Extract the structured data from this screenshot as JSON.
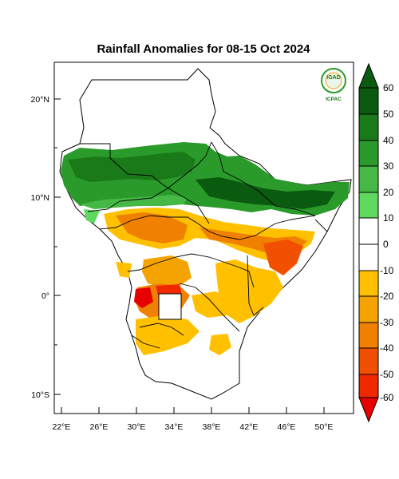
{
  "title": "Rainfall Anomalies for 08-15 Oct 2024",
  "map": {
    "lon_ticks": [
      "22°E",
      "26°E",
      "30°E",
      "34°E",
      "38°E",
      "42°E",
      "46°E",
      "50°E"
    ],
    "lat_ticks": [
      "20°N",
      "10°N",
      "0°",
      "10°S"
    ]
  },
  "colorbar": {
    "labels": [
      "60",
      "50",
      "40",
      "30",
      "20",
      "10",
      "0",
      "-10",
      "-20",
      "-30",
      "-40",
      "-50",
      "-60"
    ],
    "colors_top_to_bottom": [
      "#0a5a10",
      "#1a7a1a",
      "#2a9a2a",
      "#45b845",
      "#5fd85f",
      "#ffffff",
      "#ffffff",
      "#ffc000",
      "#f4a300",
      "#f08000",
      "#f05000",
      "#f02800",
      "#e60000"
    ]
  },
  "logo": {
    "org": "IGAD",
    "center": "ICPAC"
  }
}
